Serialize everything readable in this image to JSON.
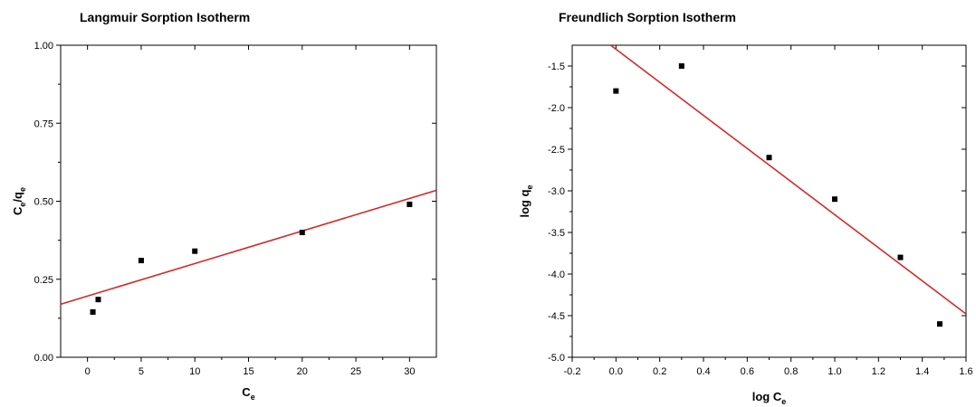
{
  "chart_data": [
    {
      "type": "scatter",
      "title": "Langmuir Sorption Isotherm",
      "xlabel_main": "C",
      "xlabel_sub": "e",
      "ylabel_parts": [
        {
          "text": "C",
          "sub": false
        },
        {
          "text": "e",
          "sub": true
        },
        {
          "text": "/q",
          "sub": false
        },
        {
          "text": "e",
          "sub": true
        }
      ],
      "xlim": [
        -2.5,
        32.5
      ],
      "ylim": [
        0,
        1
      ],
      "xticks": [
        0,
        5,
        10,
        15,
        20,
        25,
        30
      ],
      "yticks": [
        0,
        0.25,
        0.5,
        0.75,
        1.0
      ],
      "ytick_labels": [
        "0.00",
        "0.25",
        "0.50",
        "0.75",
        "1.00"
      ],
      "points": [
        {
          "x": 0.5,
          "y": 0.145
        },
        {
          "x": 1,
          "y": 0.185
        },
        {
          "x": 5,
          "y": 0.31
        },
        {
          "x": 10,
          "y": 0.34
        },
        {
          "x": 20,
          "y": 0.4
        },
        {
          "x": 30,
          "y": 0.49
        }
      ],
      "fit_line": {
        "x1": -2.5,
        "y1": 0.17,
        "x2": 32.5,
        "y2": 0.535,
        "color": "#d42a2a"
      },
      "marker_color": "#000000",
      "grid": false
    },
    {
      "type": "scatter",
      "title": "Freundlich Sorption Isotherm",
      "xlabel_main": "log C",
      "xlabel_sub": "e",
      "ylabel_parts": [
        {
          "text": "log q",
          "sub": false
        },
        {
          "text": "e",
          "sub": true
        }
      ],
      "xlim": [
        -0.2,
        1.6
      ],
      "ylim": [
        -5.0,
        -1.25
      ],
      "xticks": [
        -0.2,
        0.0,
        0.2,
        0.4,
        0.6,
        0.8,
        1.0,
        1.2,
        1.4,
        1.6
      ],
      "xtick_labels": [
        "-0.2",
        "0.0",
        "0.2",
        "0.4",
        "0.6",
        "0.8",
        "1.0",
        "1.2",
        "1.4",
        "1.6"
      ],
      "yticks": [
        -5.0,
        -4.5,
        -4.0,
        -3.5,
        -3.0,
        -2.5,
        -2.0,
        -1.5
      ],
      "ytick_labels": [
        "-5.0",
        "-4.5",
        "-4.0",
        "-3.5",
        "-3.0",
        "-2.5",
        "-2.0",
        "-1.5"
      ],
      "points": [
        {
          "x": 0.0,
          "y": -1.8
        },
        {
          "x": 0.3,
          "y": -1.5
        },
        {
          "x": 0.7,
          "y": -2.6
        },
        {
          "x": 1.0,
          "y": -3.1
        },
        {
          "x": 1.3,
          "y": -3.8
        },
        {
          "x": 1.48,
          "y": -4.6
        }
      ],
      "fit_line": {
        "x1": -0.024,
        "y1": -1.25,
        "x2": 1.6,
        "y2": -4.48,
        "color": "#d42a2a"
      },
      "marker_color": "#000000",
      "grid": false
    }
  ]
}
